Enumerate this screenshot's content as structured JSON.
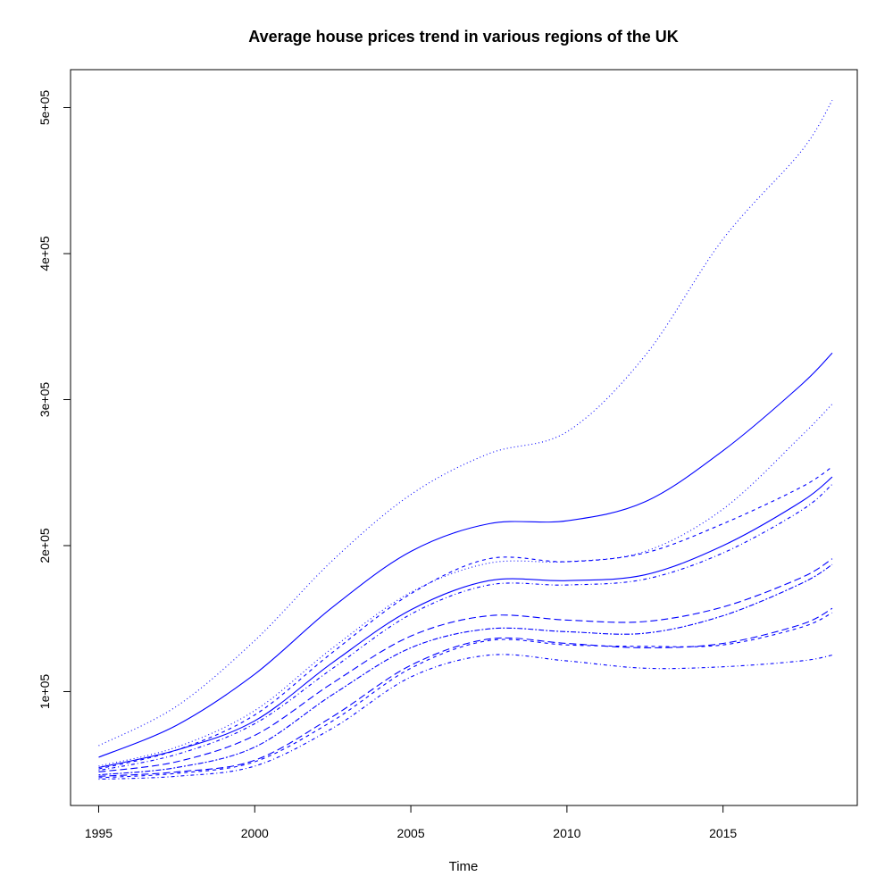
{
  "chart_data": {
    "type": "line",
    "title": "Average house prices trend in various regions of the UK",
    "xlabel": "Time",
    "ylabel": "",
    "xlim": [
      1994.1,
      2019.3
    ],
    "ylim": [
      22000,
      526000
    ],
    "x_ticks": [
      1995,
      2000,
      2005,
      2010,
      2015
    ],
    "x_tick_labels": [
      "1995",
      "2000",
      "2005",
      "2010",
      "2015"
    ],
    "y_ticks": [
      100000,
      200000,
      300000,
      400000,
      500000
    ],
    "y_tick_labels": [
      "1e+05",
      "2e+05",
      "3e+05",
      "4e+05",
      "5e+05"
    ],
    "grid": false,
    "line_color": "#0000ff",
    "x": [
      1995,
      1997.5,
      2000,
      2002.5,
      2005,
      2007.5,
      2010,
      2012.5,
      2015,
      2017.5,
      2018.5
    ],
    "series": [
      {
        "line_style": "dotted",
        "values": [
          63000,
          90000,
          135000,
          190000,
          235000,
          263000,
          278000,
          330000,
          410000,
          470000,
          505000
        ]
      },
      {
        "line_style": "solid",
        "values": [
          55000,
          77000,
          112000,
          158000,
          196000,
          215000,
          217000,
          230000,
          265000,
          310000,
          332000
        ]
      },
      {
        "line_style": "dotted",
        "values": [
          49000,
          62000,
          87000,
          130000,
          168000,
          188000,
          189000,
          196000,
          225000,
          275000,
          297000
        ]
      },
      {
        "line_style": "dashed",
        "values": [
          47000,
          60000,
          84000,
          127000,
          167000,
          191000,
          189000,
          195000,
          215000,
          240000,
          254000
        ]
      },
      {
        "line_style": "solid",
        "values": [
          48000,
          60000,
          80000,
          120000,
          156000,
          176000,
          176000,
          180000,
          200000,
          230000,
          247000
        ]
      },
      {
        "line_style": "dotdash",
        "values": [
          46000,
          57000,
          78000,
          116000,
          153000,
          173000,
          173000,
          177000,
          195000,
          224000,
          242000
        ]
      },
      {
        "line_style": "longdash",
        "values": [
          45000,
          52000,
          70000,
          106000,
          138000,
          152000,
          149000,
          148000,
          158000,
          178000,
          191000
        ]
      },
      {
        "line_style": "twodash",
        "values": [
          43000,
          48000,
          62000,
          98000,
          130000,
          143000,
          141000,
          140000,
          152000,
          174000,
          187000
        ]
      },
      {
        "line_style": "longdash",
        "values": [
          42000,
          45000,
          53000,
          83000,
          118000,
          136000,
          133000,
          130000,
          133000,
          146000,
          157000
        ]
      },
      {
        "line_style": "dashed",
        "values": [
          41000,
          44000,
          52000,
          80000,
          116000,
          135000,
          132000,
          131000,
          132000,
          144000,
          154000
        ]
      },
      {
        "line_style": "dotdash",
        "values": [
          40000,
          42000,
          49000,
          75000,
          110000,
          125000,
          121000,
          116000,
          117000,
          121000,
          125000
        ]
      }
    ]
  }
}
